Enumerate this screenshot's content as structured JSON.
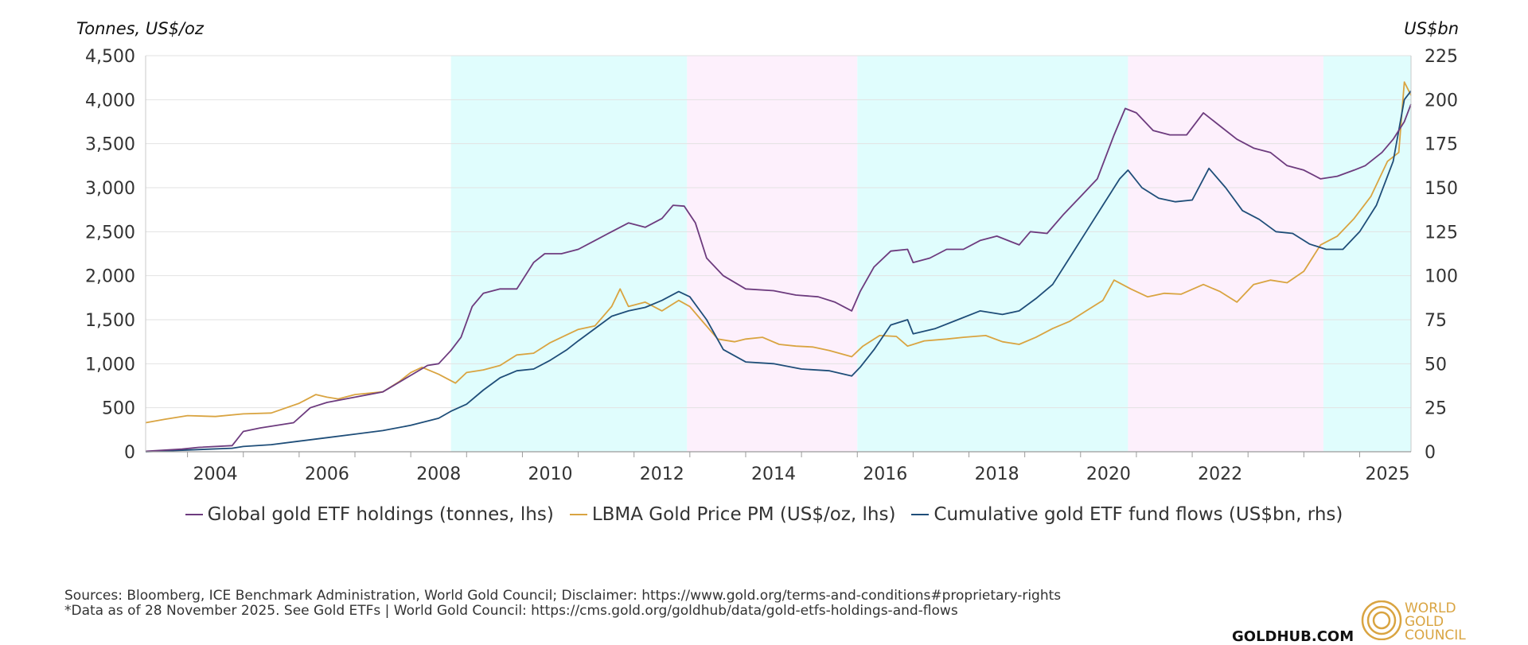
{
  "chart_data": {
    "type": "line",
    "y_left_unit": "Tonnes, US$/oz",
    "y_right_unit": "US$bn",
    "y_left_ticks": [
      "0",
      "500",
      "1,000",
      "1,500",
      "2,000",
      "2,500",
      "3,000",
      "3,500",
      "4,000",
      "4,500"
    ],
    "y_right_ticks": [
      "0",
      "25",
      "50",
      "75",
      "100",
      "125",
      "150",
      "175",
      "200",
      "225"
    ],
    "ylim_left": [
      0,
      4500
    ],
    "ylim_right": [
      0,
      225
    ],
    "xlim": [
      2003.25,
      2025.92
    ],
    "x_tick_labels": [
      {
        "year": 2004,
        "label": "2004"
      },
      {
        "year": 2006,
        "label": "2006"
      },
      {
        "year": 2008,
        "label": "2008"
      },
      {
        "year": 2010,
        "label": "2010"
      },
      {
        "year": 2012,
        "label": "2012"
      },
      {
        "year": 2014,
        "label": "2014"
      },
      {
        "year": 2016,
        "label": "2016"
      },
      {
        "year": 2018,
        "label": "2018"
      },
      {
        "year": 2020,
        "label": "2020"
      },
      {
        "year": 2022,
        "label": "2022"
      },
      {
        "year": 2025,
        "label": "2025"
      }
    ],
    "regimes": [
      {
        "start": 2008.72,
        "end": 2012.95,
        "color": "#e0fdfd"
      },
      {
        "start": 2012.95,
        "end": 2016.0,
        "color": "#fdf0fc"
      },
      {
        "start": 2016.0,
        "end": 2020.85,
        "color": "#e0fdfd"
      },
      {
        "start": 2020.85,
        "end": 2024.35,
        "color": "#fdf0fc"
      },
      {
        "start": 2024.35,
        "end": 2025.92,
        "color": "#e0fdfd"
      }
    ],
    "series": [
      {
        "name": "Global gold ETF holdings (tonnes, lhs)",
        "axis": "left",
        "color": "#6d3b7e",
        "x": [
          2003.25,
          2003.9,
          2004.2,
          2004.8,
          2005.0,
          2005.3,
          2005.9,
          2006.2,
          2006.5,
          2007.0,
          2007.5,
          2007.9,
          2008.3,
          2008.5,
          2008.72,
          2008.9,
          2009.1,
          2009.3,
          2009.6,
          2009.9,
          2010.2,
          2010.4,
          2010.7,
          2011.0,
          2011.3,
          2011.6,
          2011.9,
          2012.2,
          2012.5,
          2012.7,
          2012.9,
          2013.1,
          2013.3,
          2013.6,
          2014.0,
          2014.5,
          2014.9,
          2015.3,
          2015.6,
          2015.9,
          2016.05,
          2016.3,
          2016.6,
          2016.9,
          2017.0,
          2017.3,
          2017.6,
          2017.9,
          2018.2,
          2018.5,
          2018.9,
          2019.1,
          2019.4,
          2019.7,
          2020.0,
          2020.3,
          2020.6,
          2020.8,
          2021.0,
          2021.3,
          2021.6,
          2021.9,
          2022.2,
          2022.5,
          2022.8,
          2023.1,
          2023.4,
          2023.7,
          2024.0,
          2024.3,
          2024.6,
          2024.9,
          2025.1,
          2025.4,
          2025.6,
          2025.8,
          2025.92
        ],
        "values": [
          5,
          30,
          50,
          70,
          230,
          270,
          330,
          500,
          560,
          620,
          680,
          830,
          980,
          1000,
          1150,
          1300,
          1650,
          1800,
          1850,
          1850,
          2150,
          2250,
          2250,
          2300,
          2400,
          2500,
          2600,
          2550,
          2650,
          2800,
          2790,
          2600,
          2200,
          2000,
          1850,
          1830,
          1780,
          1760,
          1700,
          1600,
          1820,
          2100,
          2280,
          2300,
          2150,
          2200,
          2300,
          2300,
          2400,
          2450,
          2350,
          2500,
          2480,
          2700,
          2900,
          3100,
          3600,
          3900,
          3850,
          3650,
          3600,
          3600,
          3850,
          3700,
          3550,
          3450,
          3400,
          3250,
          3200,
          3100,
          3130,
          3200,
          3250,
          3400,
          3550,
          3750,
          3950
        ]
      },
      {
        "name": "LBMA Gold Price PM (US$/oz, lhs)",
        "axis": "left",
        "color": "#d9a441",
        "x": [
          2003.25,
          2003.6,
          2004.0,
          2004.5,
          2005.0,
          2005.5,
          2006.0,
          2006.3,
          2006.5,
          2006.7,
          2007.0,
          2007.5,
          2007.8,
          2008.0,
          2008.2,
          2008.5,
          2008.8,
          2009.0,
          2009.3,
          2009.6,
          2009.9,
          2010.2,
          2010.5,
          2010.8,
          2011.0,
          2011.3,
          2011.6,
          2011.75,
          2011.9,
          2012.2,
          2012.5,
          2012.8,
          2013.0,
          2013.2,
          2013.5,
          2013.8,
          2014.0,
          2014.3,
          2014.6,
          2014.9,
          2015.2,
          2015.5,
          2015.9,
          2016.1,
          2016.4,
          2016.7,
          2016.9,
          2017.2,
          2017.6,
          2017.9,
          2018.3,
          2018.6,
          2018.9,
          2019.2,
          2019.5,
          2019.8,
          2020.1,
          2020.4,
          2020.6,
          2020.9,
          2021.2,
          2021.5,
          2021.8,
          2022.2,
          2022.5,
          2022.8,
          2023.1,
          2023.4,
          2023.7,
          2024.0,
          2024.3,
          2024.6,
          2024.9,
          2025.2,
          2025.5,
          2025.7,
          2025.8,
          2025.92
        ],
        "values": [
          330,
          370,
          410,
          400,
          430,
          440,
          550,
          650,
          620,
          600,
          650,
          680,
          800,
          900,
          960,
          880,
          780,
          900,
          930,
          980,
          1100,
          1120,
          1240,
          1330,
          1390,
          1430,
          1650,
          1850,
          1650,
          1700,
          1600,
          1720,
          1650,
          1500,
          1280,
          1250,
          1280,
          1300,
          1220,
          1200,
          1190,
          1150,
          1080,
          1200,
          1320,
          1310,
          1200,
          1260,
          1280,
          1300,
          1320,
          1250,
          1220,
          1300,
          1400,
          1480,
          1600,
          1720,
          1950,
          1850,
          1760,
          1800,
          1790,
          1900,
          1820,
          1700,
          1900,
          1950,
          1920,
          2050,
          2350,
          2450,
          2650,
          2900,
          3300,
          3400,
          4200,
          4050
        ]
      },
      {
        "name": "Cumulative gold ETF fund flows (US$bn, rhs)",
        "axis": "right",
        "color": "#1f4e79",
        "x": [
          2003.25,
          2004.0,
          2004.8,
          2005.0,
          2005.5,
          2006.0,
          2006.5,
          2007.0,
          2007.5,
          2008.0,
          2008.5,
          2008.72,
          2009.0,
          2009.3,
          2009.6,
          2009.9,
          2010.2,
          2010.5,
          2010.8,
          2011.0,
          2011.3,
          2011.6,
          2011.9,
          2012.2,
          2012.5,
          2012.8,
          2013.0,
          2013.3,
          2013.6,
          2014.0,
          2014.5,
          2015.0,
          2015.5,
          2015.9,
          2016.05,
          2016.3,
          2016.6,
          2016.9,
          2017.0,
          2017.4,
          2017.8,
          2018.2,
          2018.6,
          2018.9,
          2019.2,
          2019.5,
          2019.8,
          2020.1,
          2020.4,
          2020.7,
          2020.85,
          2021.1,
          2021.4,
          2021.7,
          2022.0,
          2022.3,
          2022.6,
          2022.9,
          2023.2,
          2023.5,
          2023.8,
          2024.1,
          2024.4,
          2024.7,
          2025.0,
          2025.3,
          2025.6,
          2025.8,
          2025.92
        ],
        "values": [
          0,
          1,
          2,
          3,
          4,
          6,
          8,
          10,
          12,
          15,
          19,
          23,
          27,
          35,
          42,
          46,
          47,
          52,
          58,
          63,
          70,
          77,
          80,
          82,
          86,
          91,
          88,
          75,
          58,
          51,
          50,
          47,
          46,
          43,
          48,
          58,
          72,
          75,
          67,
          70,
          75,
          80,
          78,
          80,
          87,
          95,
          110,
          125,
          140,
          155,
          160,
          150,
          144,
          142,
          143,
          161,
          150,
          137,
          132,
          125,
          124,
          118,
          115,
          115,
          125,
          140,
          165,
          200,
          205
        ]
      }
    ],
    "legend_position": "bottom",
    "grid": true
  },
  "footer": {
    "sources_line": "Sources: Bloomberg, ICE Benchmark Administration, World Gold Council; Disclaimer: https://www.gold.org/terms-and-conditions#proprietary-rights",
    "note_line": "*Data as of 28 November 2025. See Gold ETFs | World Gold Council: https://cms.gold.org/goldhub/data/gold-etfs-holdings-and-flows",
    "goldhub_label": "GOLDHUB.COM",
    "logo_lines": [
      "WORLD",
      "GOLD",
      "COUNCIL"
    ]
  },
  "colors": {
    "holdings": "#6d3b7e",
    "price": "#d9a441",
    "flows": "#1f4e79",
    "grid": "#e2e2e2",
    "axis": "#9a9a9a",
    "logo": "#d9a441"
  }
}
